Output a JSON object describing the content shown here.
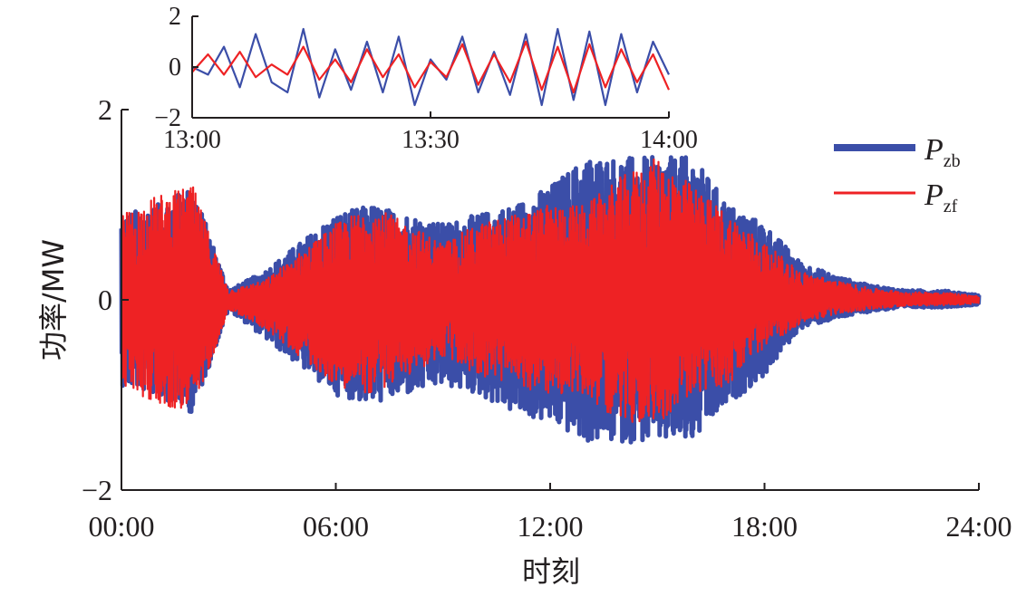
{
  "chart_data": [
    {
      "type": "line",
      "panel": "main",
      "xlabel": "时刻",
      "ylabel": "功率/MW",
      "x_ticks": [
        "00:00",
        "06:00",
        "12:00",
        "18:00",
        "24:00"
      ],
      "xlim": [
        0,
        24
      ],
      "ylim": [
        -2,
        2
      ],
      "y_ticks": [
        "−2",
        "0",
        "2"
      ],
      "grid": false,
      "legend_position": "top-right",
      "x_hours": [
        0,
        1,
        2,
        3,
        4,
        5,
        6,
        7,
        8,
        9,
        10,
        11,
        12,
        13,
        14,
        15,
        16,
        17,
        18,
        19,
        20,
        21,
        22,
        23,
        24
      ],
      "series": [
        {
          "name": "P_zb",
          "legend_main": "P",
          "legend_sub": "zb",
          "color": "#3b4ea8",
          "envelope_max": [
            0.9,
            1.0,
            1.2,
            0.1,
            0.3,
            0.6,
            0.9,
            1.0,
            0.9,
            0.8,
            0.9,
            1.0,
            1.2,
            1.5,
            1.5,
            1.5,
            1.5,
            1.0,
            0.8,
            0.4,
            0.25,
            0.15,
            0.1,
            0.1,
            0.05
          ],
          "envelope_min": [
            -0.9,
            -1.0,
            -1.2,
            -0.1,
            -0.4,
            -0.7,
            -1.0,
            -1.1,
            -1.0,
            -0.9,
            -1.0,
            -1.2,
            -1.3,
            -1.5,
            -1.5,
            -1.5,
            -1.5,
            -1.1,
            -0.8,
            -0.3,
            -0.2,
            -0.12,
            -0.08,
            -0.08,
            -0.05
          ]
        },
        {
          "name": "P_zf",
          "legend_main": "P",
          "legend_sub": "zf",
          "color": "#ee2224",
          "envelope_max": [
            0.9,
            1.1,
            1.2,
            0.1,
            0.2,
            0.5,
            0.8,
            1.0,
            0.8,
            0.6,
            0.8,
            0.9,
            1.0,
            1.0,
            1.3,
            1.5,
            1.2,
            0.9,
            0.6,
            0.3,
            0.2,
            0.12,
            0.08,
            0.08,
            0.04
          ],
          "envelope_min": [
            -0.9,
            -1.1,
            -1.2,
            -0.1,
            -0.3,
            -0.6,
            -0.9,
            -1.0,
            -0.8,
            -0.6,
            -0.8,
            -0.9,
            -1.0,
            -1.0,
            -1.3,
            -1.3,
            -1.0,
            -0.9,
            -0.5,
            -0.25,
            -0.15,
            -0.1,
            -0.06,
            -0.06,
            -0.04
          ]
        }
      ]
    },
    {
      "type": "line",
      "panel": "inset",
      "x_ticks": [
        "13:00",
        "13:30",
        "14:00"
      ],
      "y_ticks": [
        "2",
        "0",
        "−2"
      ],
      "ylim": [
        -2,
        2
      ],
      "x_minutes": [
        0,
        2,
        4,
        6,
        8,
        10,
        12,
        14,
        16,
        18,
        20,
        22,
        24,
        26,
        28,
        30,
        32,
        34,
        36,
        38,
        40,
        42,
        44,
        46,
        48,
        50,
        52,
        54,
        56,
        58,
        60
      ],
      "series": [
        {
          "name": "P_zb",
          "color": "#3b4ea8",
          "values": [
            0.0,
            -0.3,
            0.8,
            -0.8,
            1.3,
            -0.6,
            -1.0,
            1.5,
            -1.2,
            0.7,
            -0.9,
            1.0,
            -1.0,
            1.2,
            -1.5,
            0.3,
            -0.5,
            1.2,
            -1.0,
            0.6,
            -1.1,
            1.3,
            -1.5,
            1.5,
            -1.3,
            1.4,
            -1.5,
            1.3,
            -1.0,
            1.0,
            -0.3
          ]
        },
        {
          "name": "P_zf",
          "color": "#ee2224",
          "values": [
            -0.2,
            0.5,
            -0.3,
            0.6,
            -0.4,
            0.1,
            -0.3,
            0.8,
            -0.5,
            0.3,
            -0.6,
            0.7,
            -0.4,
            0.5,
            -0.8,
            0.2,
            -0.4,
            0.9,
            -0.7,
            0.5,
            -0.6,
            1.0,
            -0.9,
            0.8,
            -1.0,
            0.9,
            -0.8,
            0.7,
            -0.6,
            0.5,
            -0.9
          ]
        }
      ]
    }
  ]
}
